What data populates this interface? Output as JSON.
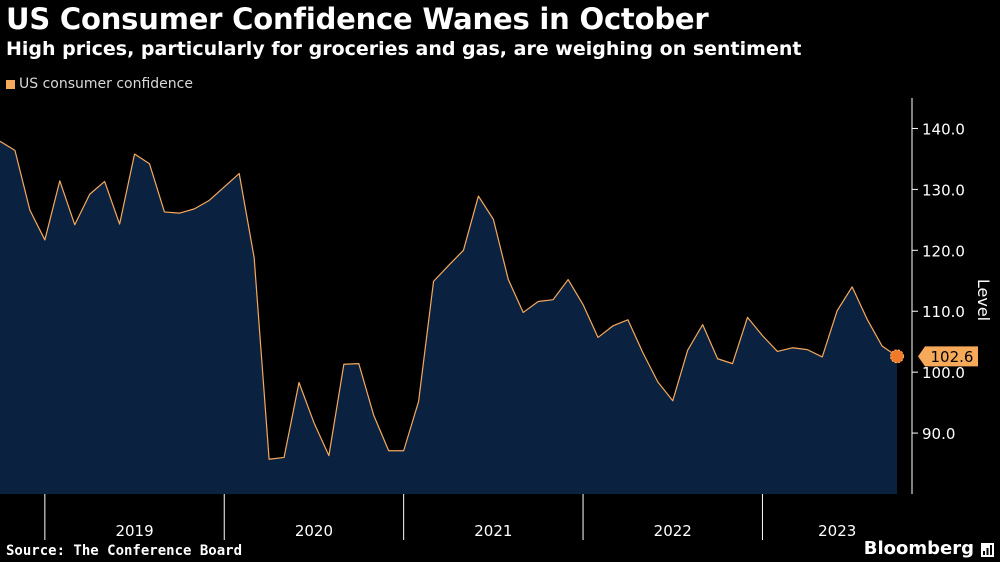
{
  "header": {
    "title": "US Consumer Confidence Wanes in October",
    "subtitle": "High prices, particularly for groceries and gas, are weighing on sentiment"
  },
  "footer": {
    "source": "Source: The Conference Board",
    "brand": "Bloomberg",
    "brand_icon": "bloomberg-terminal-icon"
  },
  "colors": {
    "line": "#f5a95b",
    "area": "#0b2140",
    "axis": "#ffffff",
    "background": "#000000",
    "marker": "#f07a2a",
    "label_bg": "#f7a95a"
  },
  "chart_data": {
    "type": "area",
    "title": "US Consumer Confidence Wanes in October",
    "subtitle": "High prices, particularly for groceries and gas, are weighing on sentiment",
    "ylabel": "Level",
    "xlabel": "",
    "ylim": [
      80,
      145
    ],
    "yticks": [
      90.0,
      100.0,
      110.0,
      120.0,
      130.0,
      140.0
    ],
    "ytick_labels": [
      "90.0",
      "100.0",
      "110.0",
      "120.0",
      "130.0",
      "140.0"
    ],
    "year_labels": [
      "2019",
      "2020",
      "2021",
      "2022",
      "2023"
    ],
    "legend": {
      "position": "top-left",
      "entries": [
        "US consumer confidence"
      ]
    },
    "grid": false,
    "last_value_label": "102.6",
    "series": [
      {
        "name": "US consumer confidence",
        "x": [
          "2018-10",
          "2018-11",
          "2018-12",
          "2019-01",
          "2019-02",
          "2019-03",
          "2019-04",
          "2019-05",
          "2019-06",
          "2019-07",
          "2019-08",
          "2019-09",
          "2019-10",
          "2019-11",
          "2019-12",
          "2020-01",
          "2020-02",
          "2020-03",
          "2020-04",
          "2020-05",
          "2020-06",
          "2020-07",
          "2020-08",
          "2020-09",
          "2020-10",
          "2020-11",
          "2020-12",
          "2021-01",
          "2021-02",
          "2021-03",
          "2021-04",
          "2021-05",
          "2021-06",
          "2021-07",
          "2021-08",
          "2021-09",
          "2021-10",
          "2021-11",
          "2021-12",
          "2022-01",
          "2022-02",
          "2022-03",
          "2022-04",
          "2022-05",
          "2022-06",
          "2022-07",
          "2022-08",
          "2022-09",
          "2022-10",
          "2022-11",
          "2022-12",
          "2023-01",
          "2023-02",
          "2023-03",
          "2023-04",
          "2023-05",
          "2023-06",
          "2023-07",
          "2023-08",
          "2023-09",
          "2023-10"
        ],
        "values": [
          137.9,
          136.4,
          126.6,
          121.7,
          131.4,
          124.2,
          129.2,
          131.3,
          124.3,
          135.8,
          134.2,
          126.3,
          126.1,
          126.8,
          128.2,
          130.4,
          132.6,
          118.8,
          85.7,
          86.0,
          98.3,
          91.7,
          86.3,
          101.3,
          101.4,
          92.9,
          87.1,
          87.1,
          95.2,
          114.9,
          117.5,
          120.0,
          128.9,
          125.1,
          115.2,
          109.8,
          111.6,
          111.9,
          115.2,
          111.1,
          105.7,
          107.6,
          108.6,
          103.2,
          98.4,
          95.3,
          103.6,
          107.8,
          102.2,
          101.4,
          109.0,
          106.0,
          103.4,
          104.0,
          103.7,
          102.5,
          110.1,
          114.0,
          108.7,
          104.3,
          102.6
        ]
      }
    ]
  }
}
